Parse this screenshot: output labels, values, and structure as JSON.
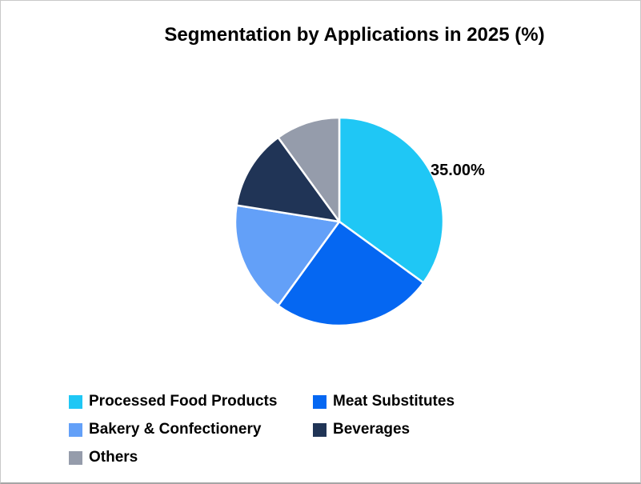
{
  "chart_data": {
    "type": "pie",
    "title": "Segmentation by Applications in 2025 (%)",
    "categories": [
      "Processed Food Products",
      "Meat Substitutes",
      "Bakery & Confectionery",
      "Beverages",
      "Others"
    ],
    "values": [
      35,
      25,
      17.5,
      12.5,
      10
    ],
    "colors": [
      "#1FC7F5",
      "#0567F2",
      "#63A0F8",
      "#203456",
      "#959CAB"
    ],
    "start_angle_deg": 0,
    "direction": "clockwise",
    "slice_border_color": "#FFFFFF",
    "legend_position": "bottom",
    "data_label": {
      "text": "35.00%",
      "slice": "Processed Food Products"
    }
  }
}
